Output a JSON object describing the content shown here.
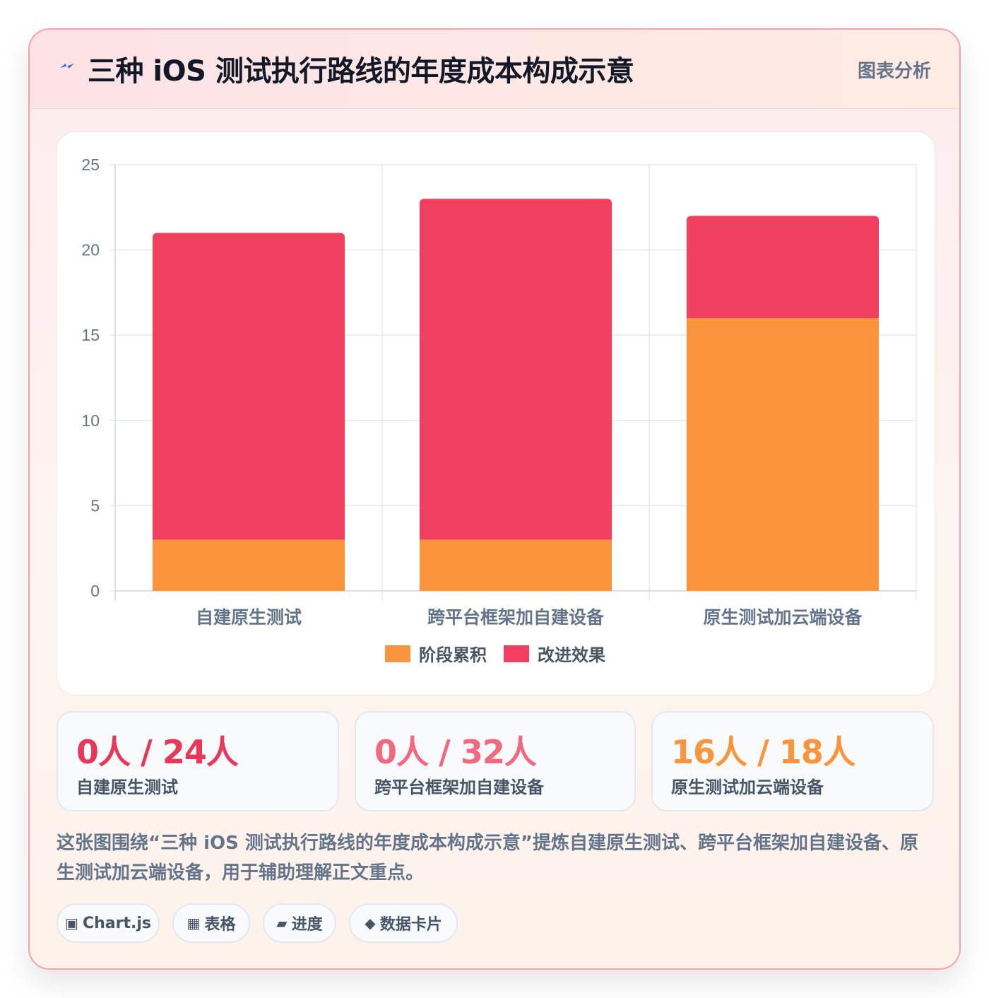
{
  "header": {
    "title": "三种 iOS 测试执行路线的年度成本构成示意",
    "tag": "图表分析",
    "icon": "lightning-icon",
    "accent": "#2563eb"
  },
  "chart_data": {
    "type": "bar",
    "stacked": true,
    "categories": [
      "自建原生测试",
      "跨平台框架加自建设备",
      "原生测试加云端设备"
    ],
    "series": [
      {
        "name": "阶段累积",
        "values": [
          3,
          3,
          16
        ],
        "color": "#fa943d"
      },
      {
        "name": "改进效果",
        "values": [
          18,
          20,
          6
        ],
        "color": "#f1405f"
      }
    ],
    "ylim": [
      0,
      25
    ],
    "yticks": [
      "0",
      "5",
      "10",
      "15",
      "20",
      "25"
    ],
    "grid": true,
    "legend": "bottom"
  },
  "stats": [
    {
      "value": "0人 / 24人",
      "label": "自建原生测试",
      "color": "#e8385a"
    },
    {
      "value": "0人 / 32人",
      "label": "跨平台框架加自建设备",
      "color": "#f0697e"
    },
    {
      "value": "16人 / 18人",
      "label": "原生测试加云端设备",
      "color": "#fa943d"
    }
  ],
  "description": "这张图围绕“三种 iOS 测试执行路线的年度成本构成示意”提炼自建原生测试、跨平台框架加自建设备、原生测试加云端设备，用于辅助理解正文重点。",
  "chips": [
    {
      "icon": "▣",
      "icon_name": "chart-icon",
      "label": "Chart.js"
    },
    {
      "icon": "▦",
      "icon_name": "table-icon",
      "label": "表格"
    },
    {
      "icon": "▰",
      "icon_name": "progress-icon",
      "label": "进度"
    },
    {
      "icon": "◆",
      "icon_name": "data-card-icon",
      "label": "数据卡片"
    }
  ]
}
